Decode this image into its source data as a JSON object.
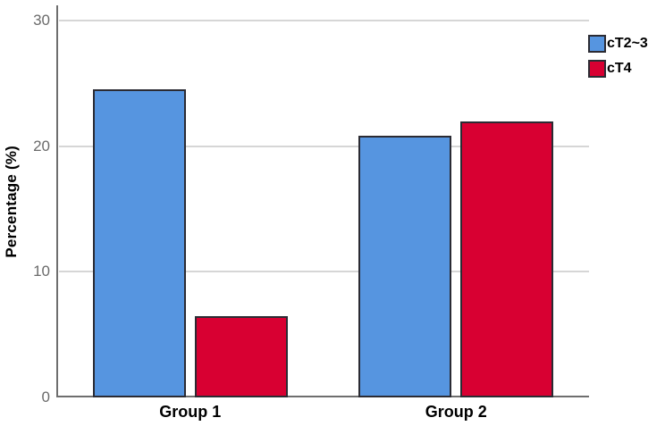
{
  "chart_data": {
    "type": "bar",
    "title": "",
    "xlabel": "",
    "ylabel": "Percentage (%)",
    "categories": [
      "Group 1",
      "Group 2"
    ],
    "series": [
      {
        "name": "cT2~3",
        "color": "#5695e0",
        "values": [
          24.5,
          20.8
        ]
      },
      {
        "name": "cT4",
        "color": "#d80032",
        "values": [
          6.5,
          22.0
        ]
      }
    ],
    "ylim": [
      0,
      30
    ],
    "yticks": [
      0,
      10,
      20,
      30
    ],
    "grid": "horizontal-light",
    "legend_position": "top-right"
  },
  "palette": {
    "axis_line": "#6e6e6e",
    "gridline": "#d6d6d6",
    "tick_label": "#6b6b6b",
    "bar_border": "#2b2b33",
    "background": "#ffffff"
  }
}
